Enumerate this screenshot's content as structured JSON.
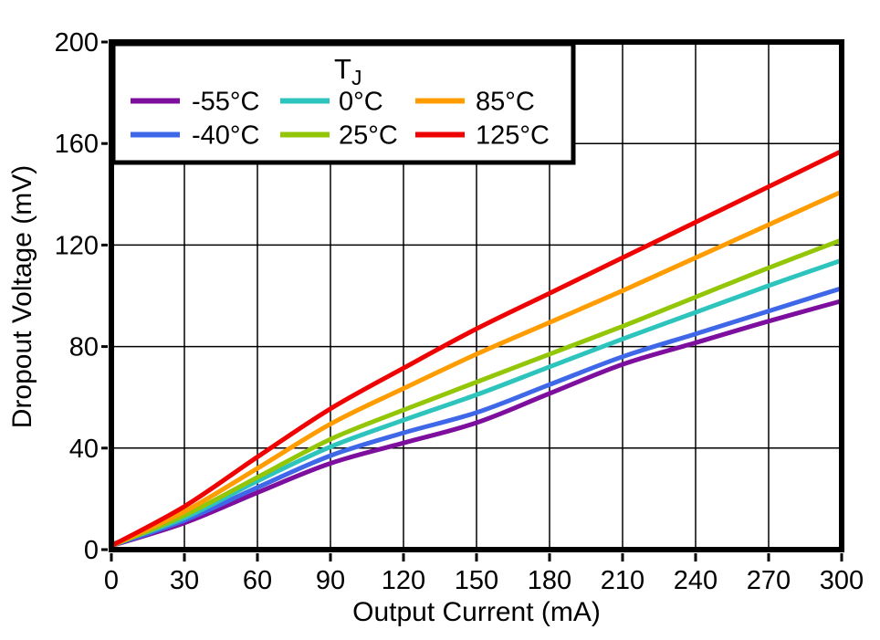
{
  "chart_data": {
    "type": "line",
    "title": "",
    "xlabel": "Output Current (mA)",
    "ylabel": "Dropout Voltage (mV)",
    "xlim": [
      0,
      300
    ],
    "ylim": [
      0,
      200
    ],
    "xticks": [
      0,
      30,
      60,
      90,
      120,
      150,
      180,
      210,
      240,
      270,
      300
    ],
    "yticks": [
      0,
      40,
      80,
      120,
      160,
      200
    ],
    "grid": true,
    "legend": {
      "title": "T",
      "title_subscript": "J",
      "position": "top-left"
    },
    "x": [
      0,
      30,
      60,
      90,
      120,
      150,
      180,
      210,
      240,
      270,
      300
    ],
    "series": [
      {
        "name": "-55°C",
        "color": "#7D0E9E",
        "values": [
          1.5,
          10.5,
          22.5,
          34,
          42,
          50,
          61.5,
          73,
          81.5,
          90,
          98
        ]
      },
      {
        "name": "-40°C",
        "color": "#3F68E8",
        "values": [
          1.5,
          11.5,
          24.5,
          37,
          46,
          54,
          65,
          76,
          85,
          94,
          103
        ]
      },
      {
        "name": "0°C",
        "color": "#2EC4BE",
        "values": [
          2,
          12.5,
          27,
          40.5,
          51,
          61,
          72,
          83,
          93.5,
          104,
          114
        ]
      },
      {
        "name": "25°C",
        "color": "#92C607",
        "values": [
          1.5,
          13.5,
          28.5,
          43.5,
          55,
          66,
          77,
          88,
          99.5,
          111,
          122
        ]
      },
      {
        "name": "85°C",
        "color": "#FF9C00",
        "values": [
          1.5,
          15,
          32,
          49.5,
          63.5,
          77,
          89.5,
          102,
          115,
          128,
          141
        ]
      },
      {
        "name": "125°C",
        "color": "#EF0202",
        "values": [
          1.5,
          17,
          36.5,
          55.5,
          71.5,
          87,
          101,
          115,
          129,
          143,
          157
        ]
      }
    ]
  },
  "colors": {
    "background": "#FFFFFF",
    "axis": "#000000",
    "grid": "#000000",
    "text": "#000000"
  }
}
